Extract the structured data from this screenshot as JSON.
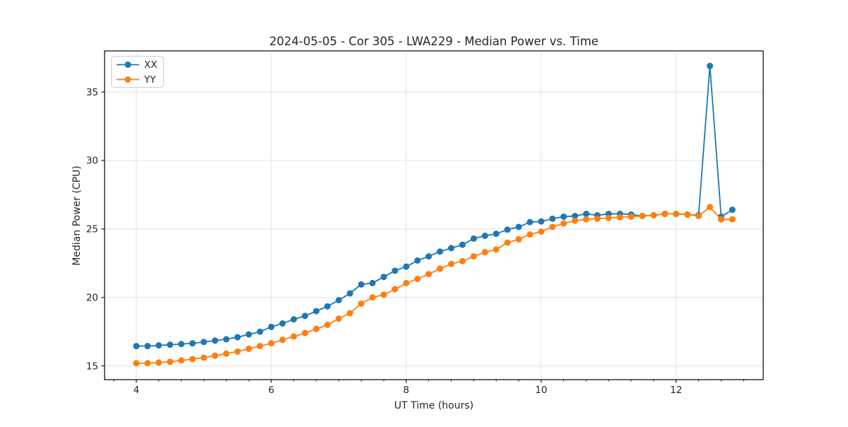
{
  "chart_data": {
    "type": "line",
    "title": "2024-05-05 - Cor 305 - LWA229 - Median Power vs. Time",
    "xlabel": "UT Time (hours)",
    "ylabel": "Median Power (CPU)",
    "xlim": [
      3.53,
      13.29
    ],
    "ylim": [
      14.0,
      38.0
    ],
    "xticks": [
      4,
      6,
      8,
      10,
      12
    ],
    "yticks": [
      15,
      20,
      25,
      30,
      35
    ],
    "x_minor_step": 0.3333,
    "grid": true,
    "legend_position": "upper-left",
    "background_color": "#ffffff",
    "grid_color": "#e0e0e0",
    "spine_color": "#000000",
    "x": [
      4.0,
      4.167,
      4.333,
      4.5,
      4.667,
      4.833,
      5.0,
      5.167,
      5.333,
      5.5,
      5.667,
      5.833,
      6.0,
      6.167,
      6.333,
      6.5,
      6.667,
      6.833,
      7.0,
      7.167,
      7.333,
      7.5,
      7.667,
      7.833,
      8.0,
      8.167,
      8.333,
      8.5,
      8.667,
      8.833,
      9.0,
      9.167,
      9.333,
      9.5,
      9.667,
      9.833,
      10.0,
      10.167,
      10.333,
      10.5,
      10.667,
      10.833,
      11.0,
      11.167,
      11.333,
      11.5,
      11.667,
      11.833,
      12.0,
      12.167,
      12.333,
      12.5,
      12.667,
      12.833
    ],
    "series": [
      {
        "name": "XX",
        "color": "#1f77b4",
        "values": [
          16.45,
          16.45,
          16.5,
          16.55,
          16.6,
          16.65,
          16.75,
          16.85,
          16.95,
          17.1,
          17.3,
          17.5,
          17.85,
          18.1,
          18.4,
          18.65,
          19.0,
          19.35,
          19.8,
          20.3,
          20.95,
          21.05,
          21.5,
          21.95,
          22.25,
          22.7,
          23.0,
          23.35,
          23.6,
          23.85,
          24.3,
          24.5,
          24.65,
          24.95,
          25.15,
          25.5,
          25.55,
          25.75,
          25.9,
          25.95,
          26.1,
          26.0,
          26.1,
          26.1,
          26.05,
          25.95,
          26.0,
          26.1,
          26.1,
          26.05,
          26.0,
          36.9,
          25.9,
          26.4
        ]
      },
      {
        "name": "YY",
        "color": "#ff7f0e",
        "values": [
          15.2,
          15.2,
          15.25,
          15.3,
          15.4,
          15.5,
          15.6,
          15.75,
          15.9,
          16.05,
          16.25,
          16.45,
          16.65,
          16.9,
          17.15,
          17.4,
          17.7,
          18.0,
          18.45,
          18.85,
          19.55,
          20.0,
          20.2,
          20.6,
          21.05,
          21.35,
          21.7,
          22.1,
          22.45,
          22.65,
          23.0,
          23.3,
          23.5,
          24.0,
          24.25,
          24.6,
          24.8,
          25.15,
          25.4,
          25.6,
          25.7,
          25.75,
          25.8,
          25.85,
          25.9,
          25.95,
          26.0,
          26.1,
          26.1,
          26.05,
          25.95,
          26.6,
          25.7,
          25.7
        ]
      }
    ]
  }
}
